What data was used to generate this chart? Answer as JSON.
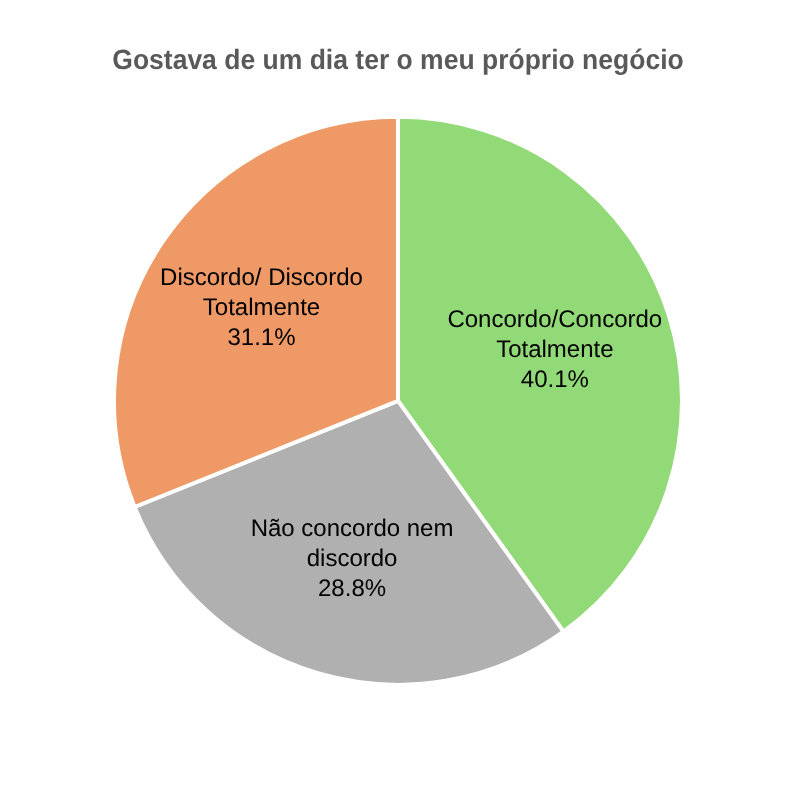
{
  "chart_data": {
    "type": "pie",
    "title": "Gostava de um dia ter o meu próprio negócio",
    "categories": [
      "Concordo/Concordo Totalmente",
      "Não concordo nem discordo",
      "Discordo/ Discordo Totalmente"
    ],
    "values": [
      40.1,
      28.8,
      31.1
    ],
    "colors": [
      "#92d977",
      "#b0b0b0",
      "#ee9966"
    ],
    "value_labels": [
      "40.1%",
      "28.8%",
      "31.1%"
    ],
    "legend": false
  }
}
